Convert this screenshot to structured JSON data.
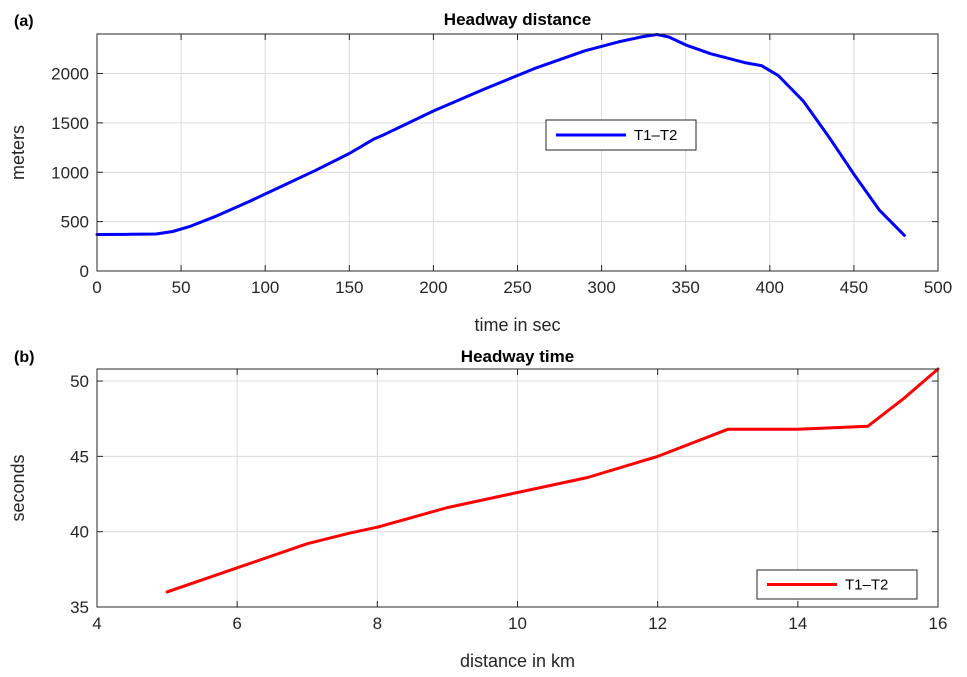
{
  "colors": {
    "series_a": "#0000ff",
    "series_b": "#ff0000",
    "grid": "#dcdcdc",
    "axis": "#262626"
  },
  "chart_data": [
    {
      "panel_tag": "(a)",
      "type": "line",
      "title": "Headway distance",
      "xlabel": "time in sec",
      "ylabel": "meters",
      "xlim": [
        0,
        500
      ],
      "ylim": [
        0,
        2400
      ],
      "xticks": [
        0,
        50,
        100,
        150,
        200,
        250,
        300,
        350,
        400,
        450,
        500
      ],
      "yticks": [
        0,
        500,
        1000,
        1500,
        2000
      ],
      "grid": true,
      "legend_position": "center-right",
      "series": [
        {
          "name": "T1–T2",
          "color": "#0000ff",
          "x": [
            0,
            20,
            35,
            45,
            55,
            70,
            90,
            110,
            130,
            150,
            165,
            170,
            200,
            230,
            260,
            290,
            310,
            325,
            333,
            340,
            350,
            365,
            385,
            395,
            405,
            420,
            435,
            450,
            465,
            480
          ],
          "y": [
            370,
            372,
            375,
            400,
            450,
            550,
            700,
            860,
            1020,
            1190,
            1340,
            1375,
            1620,
            1840,
            2050,
            2230,
            2320,
            2375,
            2395,
            2370,
            2290,
            2200,
            2110,
            2080,
            1980,
            1720,
            1360,
            980,
            620,
            360
          ]
        }
      ]
    },
    {
      "panel_tag": "(b)",
      "type": "line",
      "title": "Headway time",
      "xlabel": "distance in km",
      "ylabel": "seconds",
      "xlim": [
        4,
        16
      ],
      "ylim": [
        35,
        50.8
      ],
      "xticks": [
        4,
        6,
        8,
        10,
        12,
        14,
        16
      ],
      "yticks": [
        35,
        40,
        45,
        50
      ],
      "grid": true,
      "legend_position": "bottom-right",
      "series": [
        {
          "name": "T1–T2",
          "color": "#ff0000",
          "x": [
            5,
            6,
            7,
            7.6,
            8,
            9,
            10,
            11,
            12,
            13,
            14,
            15,
            15.5,
            16
          ],
          "y": [
            36.0,
            37.6,
            39.2,
            39.9,
            40.3,
            41.6,
            42.6,
            43.6,
            45.0,
            46.8,
            46.8,
            47.0,
            48.8,
            50.8
          ]
        }
      ]
    }
  ]
}
